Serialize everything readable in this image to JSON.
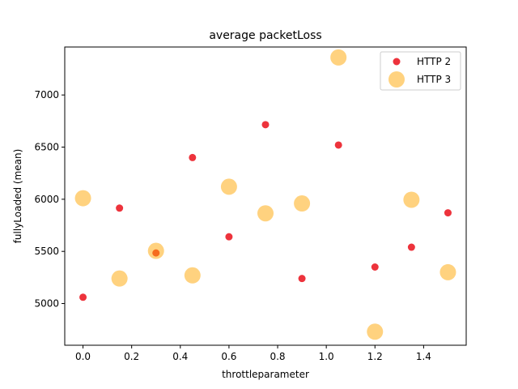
{
  "chart_data": {
    "type": "scatter",
    "title": "average packetLoss",
    "xlabel": "throttleparameter",
    "ylabel": "fullyLoaded (mean)",
    "xlim": [
      -0.075,
      1.575
    ],
    "ylim": [
      4600,
      7460
    ],
    "xticks": [
      0.0,
      0.2,
      0.4,
      0.6,
      0.8,
      1.0,
      1.2,
      1.4
    ],
    "xtick_labels": [
      "0.0",
      "0.2",
      "0.4",
      "0.6",
      "0.8",
      "1.0",
      "1.2",
      "1.4"
    ],
    "yticks": [
      5000,
      5500,
      6000,
      6500,
      7000
    ],
    "ytick_labels": [
      "5000",
      "5500",
      "6000",
      "6500",
      "7000"
    ],
    "grid": false,
    "legend_position": "top-right",
    "series": [
      {
        "name": "HTTP 2",
        "color": "#e8000b",
        "marker": "small-circle",
        "x": [
          0.0,
          0.15,
          0.3,
          0.45,
          0.6,
          0.75,
          0.9,
          1.05,
          1.2,
          1.35,
          1.5
        ],
        "y": [
          5060,
          5915,
          5485,
          6400,
          5640,
          6715,
          5240,
          6520,
          5350,
          5540,
          5870
        ]
      },
      {
        "name": "HTTP 3",
        "color": "#ffa500",
        "marker": "large-circle",
        "x": [
          0.0,
          0.15,
          0.3,
          0.45,
          0.6,
          0.75,
          0.9,
          1.05,
          1.2,
          1.35,
          1.5
        ],
        "y": [
          6010,
          5240,
          5505,
          5270,
          6120,
          5865,
          5960,
          7360,
          4730,
          5995,
          5300
        ]
      }
    ]
  }
}
